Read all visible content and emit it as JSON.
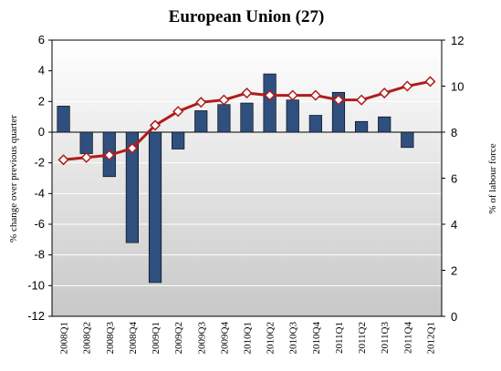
{
  "chart_data": {
    "type": "bar_line",
    "title": "European Union (27)",
    "y_label": "% change over previous quarter",
    "y2_label": "% of labour force",
    "categories": [
      "2008Q1",
      "2008Q2",
      "2008Q3",
      "2008Q4",
      "2009Q1",
      "2009Q2",
      "2009Q3",
      "2009Q4",
      "2010Q1",
      "2010Q2",
      "2010Q3",
      "2010Q4",
      "2011Q1",
      "2011Q2",
      "2011Q3",
      "2011Q4",
      "2012Q1"
    ],
    "series": [
      {
        "type": "bar",
        "color": "#2f4f7f",
        "values": [
          1.7,
          -1.4,
          -2.9,
          -7.2,
          -9.8,
          -1.1,
          1.4,
          1.8,
          1.9,
          3.8,
          2.1,
          1.1,
          2.6,
          0.7,
          1.0,
          -1.0,
          null
        ]
      },
      {
        "type": "line",
        "axis": "y2",
        "color": "#b01c1c",
        "values": [
          6.8,
          6.9,
          7.0,
          7.3,
          8.3,
          8.9,
          9.3,
          9.4,
          9.7,
          9.6,
          9.6,
          9.6,
          9.4,
          9.4,
          9.7,
          10.0,
          10.2
        ]
      }
    ],
    "ylim": [
      -12,
      6
    ],
    "yticks": [
      -12,
      -10,
      -8,
      -6,
      -4,
      -2,
      0,
      2,
      4,
      6
    ],
    "y2lim": [
      0,
      12
    ],
    "y2ticks": [
      0,
      2,
      4,
      6,
      8,
      10,
      12
    ],
    "grid": true
  }
}
